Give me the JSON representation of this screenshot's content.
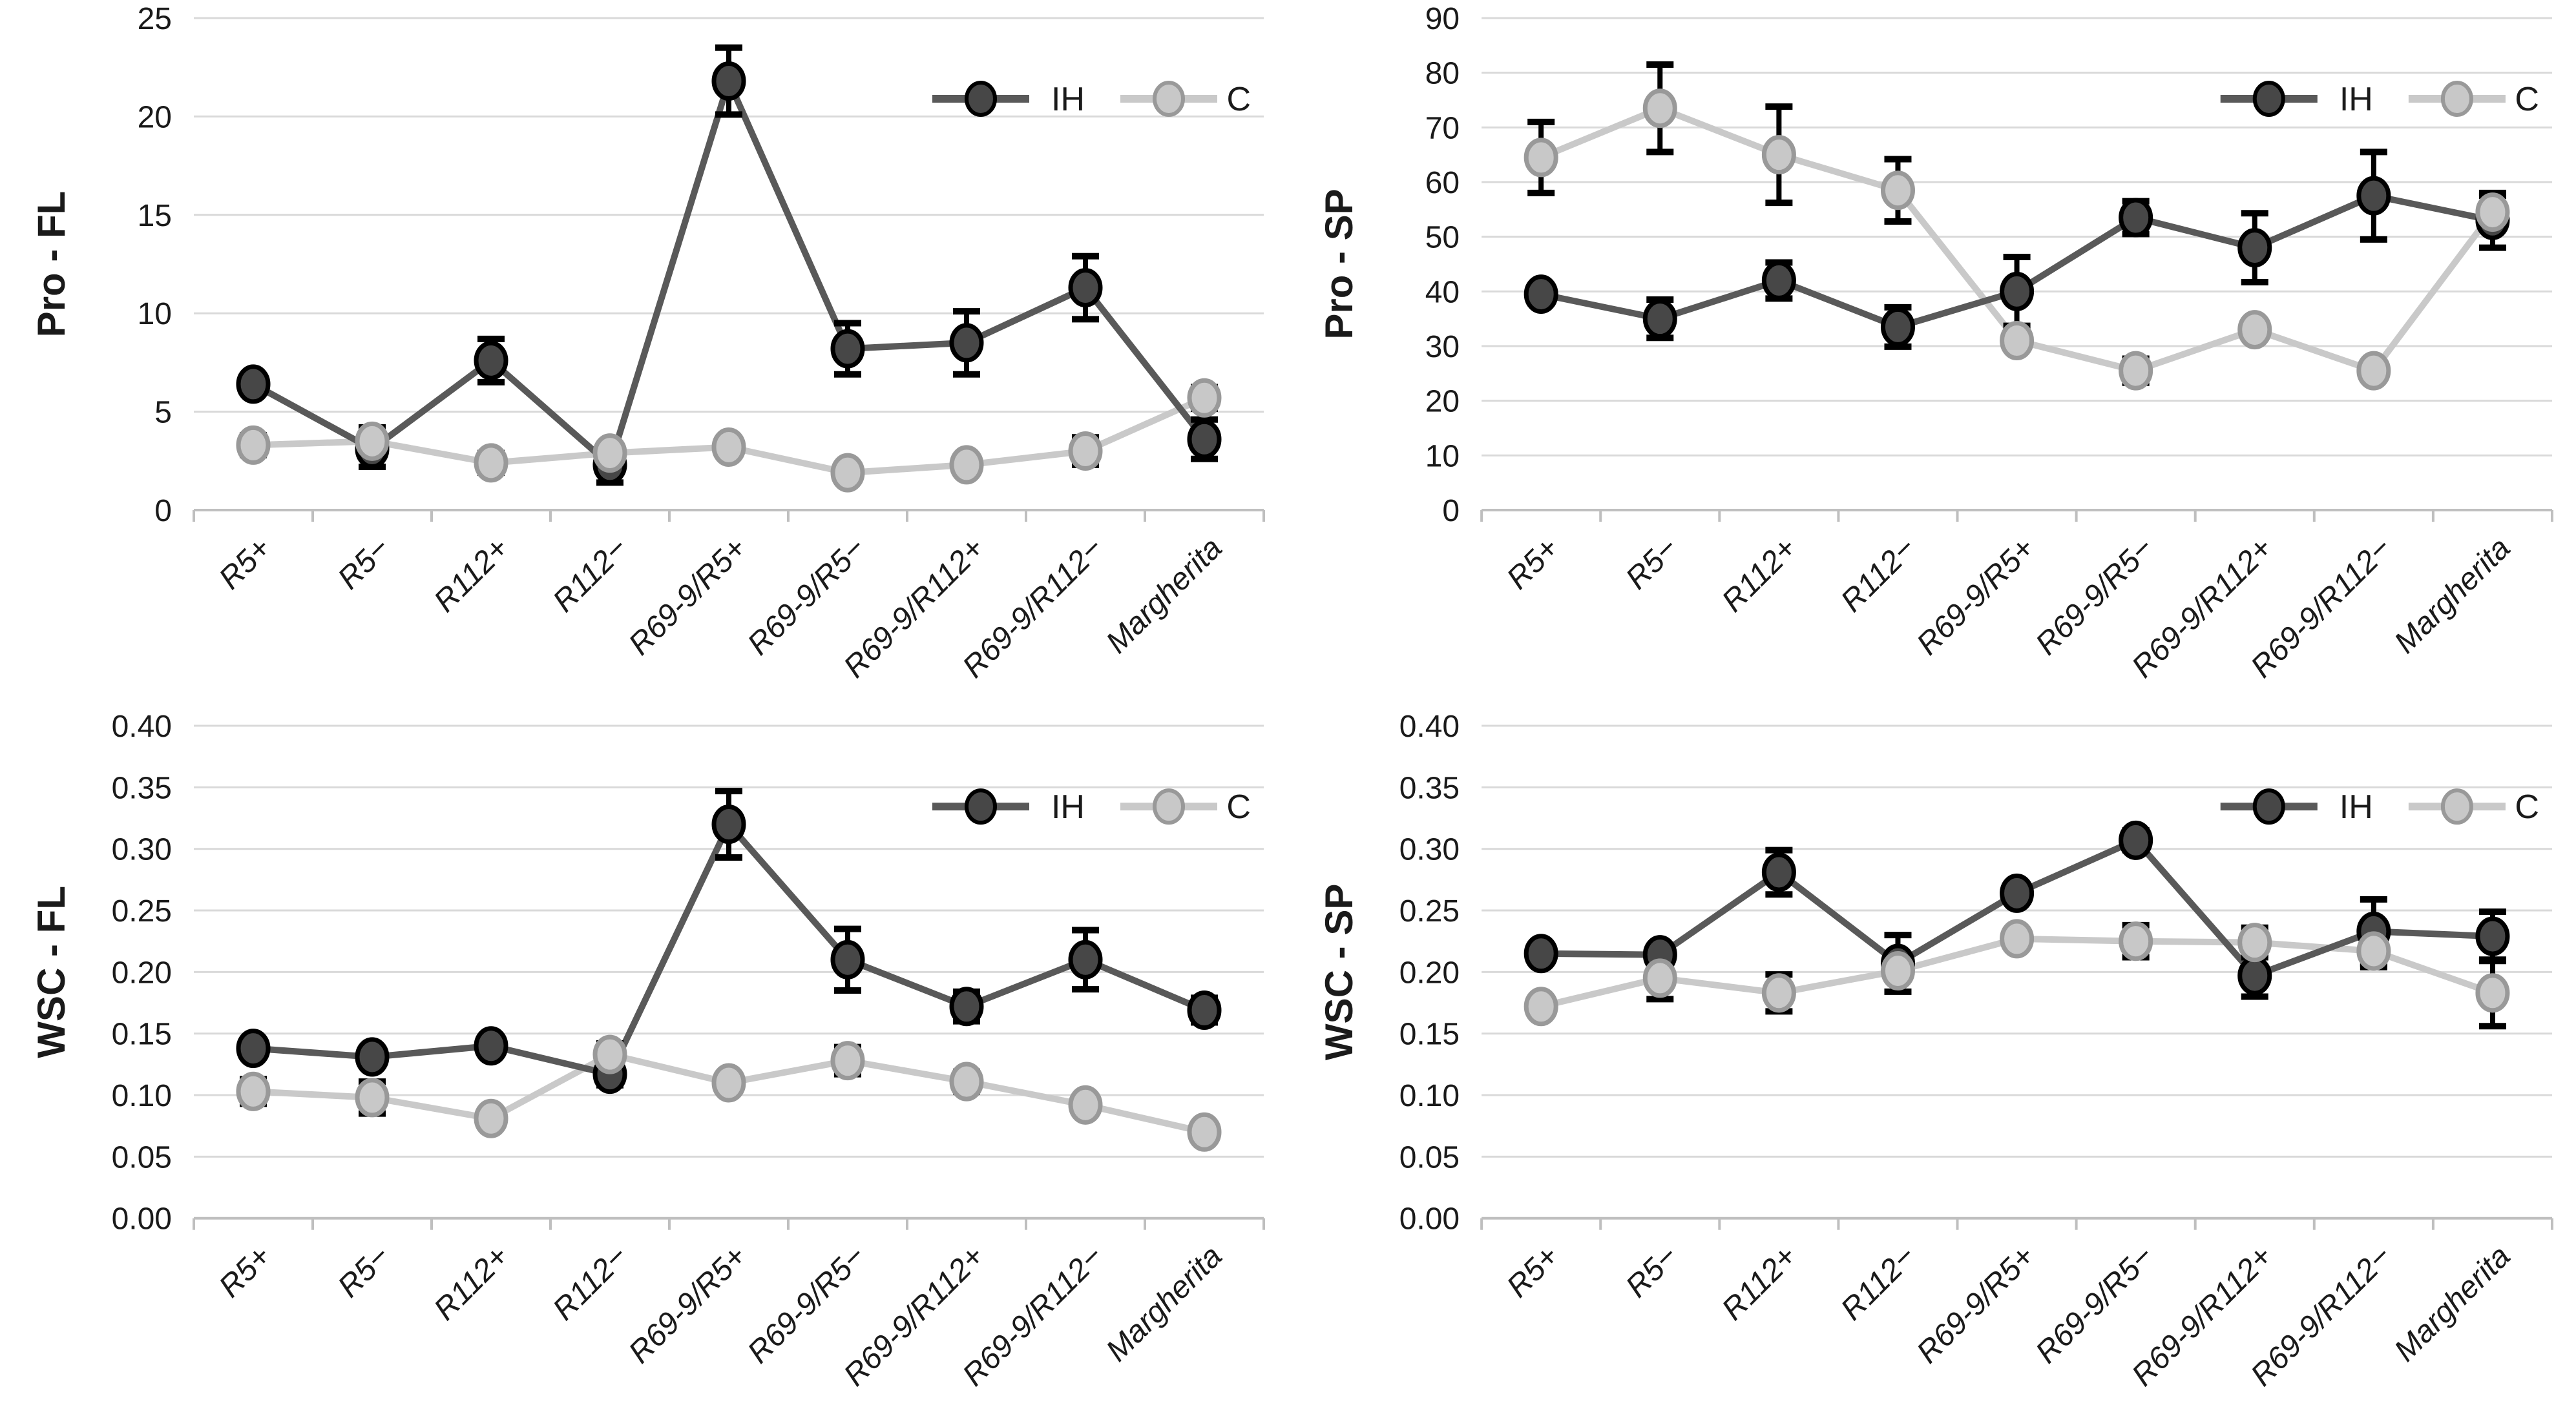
{
  "figure": {
    "background": "#ffffff",
    "rows": 2,
    "cols": 2
  },
  "colors": {
    "grid": "#d9d9d9",
    "axis": "#bfbfbf",
    "error_bar": "#000000",
    "text": "#1a1a1a",
    "ih_line": "#595959",
    "ih_marker_fill": "#474747",
    "ih_marker_stroke": "#000000",
    "c_line": "#c9c9c9",
    "c_marker_fill": "#c8c8c8",
    "c_marker_stroke": "#999999"
  },
  "legend": {
    "ih_label": "IH",
    "c_label": "C",
    "position": "top-right"
  },
  "chart_data": [
    {
      "id": "pro-fl",
      "type": "line",
      "ylabel": "Pro - FL",
      "ylim": [
        0,
        25
      ],
      "ystep": 5,
      "ydecimals": 0,
      "grid": true,
      "legend_position": "top-right",
      "categories": [
        "R5+",
        "R5−",
        "R112+",
        "R112−",
        "R69-9/R5+",
        "R69-9/R5−",
        "R69-9/R112+",
        "R69-9/R112−",
        "Margherita"
      ],
      "series": [
        {
          "name": "IH",
          "values": [
            6.4,
            3.1,
            7.6,
            2.3,
            21.8,
            8.2,
            8.5,
            11.3,
            3.6
          ],
          "errors": [
            0,
            0.9,
            1.1,
            0.9,
            1.7,
            1.3,
            1.6,
            1.6,
            1.0
          ]
        },
        {
          "name": "C",
          "values": [
            3.3,
            3.5,
            2.4,
            2.9,
            3.2,
            1.9,
            2.3,
            3.0,
            5.7
          ],
          "errors": [
            0.5,
            0.7,
            0.5,
            0.4,
            0.3,
            0.45,
            0.3,
            0.7,
            0.55
          ]
        }
      ]
    },
    {
      "id": "pro-sp",
      "type": "line",
      "ylabel": "Pro - SP",
      "ylim": [
        0,
        90
      ],
      "ystep": 10,
      "ydecimals": 0,
      "grid": true,
      "legend_position": "top-right",
      "categories": [
        "R5+",
        "R5−",
        "R112+",
        "R112−",
        "R69-9/R5+",
        "R69-9/R5−",
        "R69-9/R112+",
        "R69-9/R112−",
        "Margherita"
      ],
      "series": [
        {
          "name": "IH",
          "values": [
            39.5,
            35,
            42,
            33.5,
            40,
            53.5,
            48,
            57.5,
            53
          ],
          "errors": [
            1.2,
            3.5,
            3.3,
            3.6,
            6.3,
            3.0,
            6.3,
            8.0,
            5.0
          ]
        },
        {
          "name": "C",
          "values": [
            64.5,
            73.5,
            65,
            58.5,
            31,
            25.5,
            33,
            25.5,
            54.5
          ],
          "errors": [
            6.5,
            8.0,
            8.8,
            5.7,
            1.0,
            2.2,
            1.2,
            1.5,
            3.0
          ]
        }
      ]
    },
    {
      "id": "wsc-fl",
      "type": "line",
      "ylabel": "WSC - FL",
      "ylim": [
        0,
        0.4
      ],
      "ystep": 0.05,
      "ydecimals": 2,
      "grid": true,
      "legend_position": "top-right",
      "categories": [
        "R5+",
        "R5−",
        "R112+",
        "R112−",
        "R69-9/R5+",
        "R69-9/R5−",
        "R69-9/R112+",
        "R69-9/R112−",
        "Margherita"
      ],
      "series": [
        {
          "name": "IH",
          "values": [
            0.138,
            0.131,
            0.14,
            0.117,
            0.32,
            0.21,
            0.172,
            0.21,
            0.169
          ],
          "errors": [
            0.006,
            0.005,
            0.006,
            0.009,
            0.027,
            0.025,
            0.012,
            0.024,
            0.01
          ]
        },
        {
          "name": "C",
          "values": [
            0.103,
            0.098,
            0.081,
            0.133,
            0.11,
            0.128,
            0.111,
            0.092,
            0.07
          ],
          "errors": [
            0.01,
            0.013,
            0.007,
            0.009,
            0.004,
            0.011,
            0.008,
            0.005,
            0
          ]
        }
      ]
    },
    {
      "id": "wsc-sp",
      "type": "line",
      "ylabel": "WSC - SP",
      "ylim": [
        0,
        0.4
      ],
      "ystep": 0.05,
      "ydecimals": 2,
      "grid": true,
      "legend_position": "top-right",
      "categories": [
        "R5+",
        "R5−",
        "R112+",
        "R112−",
        "R69-9/R5+",
        "R69-9/R5−",
        "R69-9/R112+",
        "R69-9/R112−",
        "Margherita"
      ],
      "series": [
        {
          "name": "IH",
          "values": [
            0.215,
            0.214,
            0.281,
            0.207,
            0.264,
            0.307,
            0.197,
            0.233,
            0.229
          ],
          "errors": [
            0.005,
            0.005,
            0.018,
            0.023,
            0.004,
            0.008,
            0.017,
            0.026,
            0.02
          ]
        },
        {
          "name": "C",
          "values": [
            0.172,
            0.195,
            0.183,
            0.201,
            0.227,
            0.225,
            0.224,
            0.217,
            0.183
          ],
          "errors": [
            0.004,
            0.017,
            0.015,
            0.005,
            0.005,
            0.013,
            0.012,
            0.013,
            0.027
          ]
        }
      ]
    }
  ]
}
